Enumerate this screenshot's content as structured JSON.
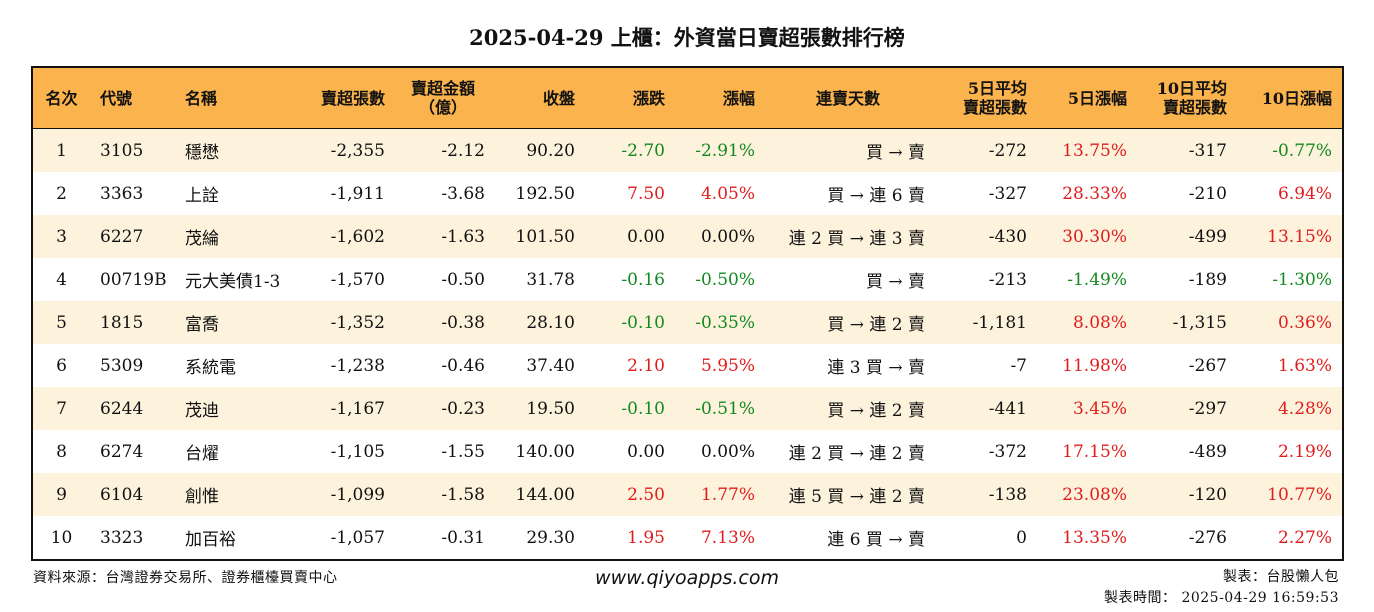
{
  "title": "2025-04-29 上櫃：外資當日賣超張數排行榜",
  "headers": {
    "rank": "名次",
    "code": "代號",
    "name": "名稱",
    "sell_lots": "賣超張數",
    "sell_amount_line1": "賣超金額",
    "sell_amount_line2": "（億）",
    "close": "收盤",
    "change": "漲跌",
    "change_pct": "漲幅",
    "streak": "連賣天數",
    "avg5_line1": "5日平均",
    "avg5_line2": "賣超張數",
    "pct5": "5日漲幅",
    "avg10_line1": "10日平均",
    "avg10_line2": "賣超張數",
    "pct10": "10日漲幅"
  },
  "colors": {
    "header_bg": "#fbb34d",
    "row_alt_bg": "#fdf2dc",
    "up": "#e01d1d",
    "down": "#128a20"
  },
  "rows": [
    {
      "rank": "1",
      "code": "3105",
      "name": "穩懋",
      "sell_lots": "-2,355",
      "amount": "-2.12",
      "close": "90.20",
      "change": "-2.70",
      "change_pct": "-2.91%",
      "streak": "買 → 賣",
      "avg5": "-272",
      "pct5": "13.75%",
      "avg10": "-317",
      "pct10": "-0.77%"
    },
    {
      "rank": "2",
      "code": "3363",
      "name": "上詮",
      "sell_lots": "-1,911",
      "amount": "-3.68",
      "close": "192.50",
      "change": "7.50",
      "change_pct": "4.05%",
      "streak": "買 → 連 6 賣",
      "avg5": "-327",
      "pct5": "28.33%",
      "avg10": "-210",
      "pct10": "6.94%"
    },
    {
      "rank": "3",
      "code": "6227",
      "name": "茂綸",
      "sell_lots": "-1,602",
      "amount": "-1.63",
      "close": "101.50",
      "change": "0.00",
      "change_pct": "0.00%",
      "streak": "連 2 買 → 連 3 賣",
      "avg5": "-430",
      "pct5": "30.30%",
      "avg10": "-499",
      "pct10": "13.15%"
    },
    {
      "rank": "4",
      "code": "00719B",
      "name": "元大美債1-3",
      "sell_lots": "-1,570",
      "amount": "-0.50",
      "close": "31.78",
      "change": "-0.16",
      "change_pct": "-0.50%",
      "streak": "買 → 賣",
      "avg5": "-213",
      "pct5": "-1.49%",
      "avg10": "-189",
      "pct10": "-1.30%"
    },
    {
      "rank": "5",
      "code": "1815",
      "name": "富喬",
      "sell_lots": "-1,352",
      "amount": "-0.38",
      "close": "28.10",
      "change": "-0.10",
      "change_pct": "-0.35%",
      "streak": "買 → 連 2 賣",
      "avg5": "-1,181",
      "pct5": "8.08%",
      "avg10": "-1,315",
      "pct10": "0.36%"
    },
    {
      "rank": "6",
      "code": "5309",
      "name": "系統電",
      "sell_lots": "-1,238",
      "amount": "-0.46",
      "close": "37.40",
      "change": "2.10",
      "change_pct": "5.95%",
      "streak": "連 3 買 → 賣",
      "avg5": "-7",
      "pct5": "11.98%",
      "avg10": "-267",
      "pct10": "1.63%"
    },
    {
      "rank": "7",
      "code": "6244",
      "name": "茂迪",
      "sell_lots": "-1,167",
      "amount": "-0.23",
      "close": "19.50",
      "change": "-0.10",
      "change_pct": "-0.51%",
      "streak": "買 → 連 2 賣",
      "avg5": "-441",
      "pct5": "3.45%",
      "avg10": "-297",
      "pct10": "4.28%"
    },
    {
      "rank": "8",
      "code": "6274",
      "name": "台燿",
      "sell_lots": "-1,105",
      "amount": "-1.55",
      "close": "140.00",
      "change": "0.00",
      "change_pct": "0.00%",
      "streak": "連 2 買 → 連 2 賣",
      "avg5": "-372",
      "pct5": "17.15%",
      "avg10": "-489",
      "pct10": "2.19%"
    },
    {
      "rank": "9",
      "code": "6104",
      "name": "創惟",
      "sell_lots": "-1,099",
      "amount": "-1.58",
      "close": "144.00",
      "change": "2.50",
      "change_pct": "1.77%",
      "streak": "連 5 買 → 連 2 賣",
      "avg5": "-138",
      "pct5": "23.08%",
      "avg10": "-120",
      "pct10": "10.77%"
    },
    {
      "rank": "10",
      "code": "3323",
      "name": "加百裕",
      "sell_lots": "-1,057",
      "amount": "-0.31",
      "close": "29.30",
      "change": "1.95",
      "change_pct": "7.13%",
      "streak": "連 6 買 → 賣",
      "avg5": "0",
      "pct5": "13.35%",
      "avg10": "-276",
      "pct10": "2.27%"
    }
  ],
  "footer": {
    "source": "資料來源：台灣證券交易所、證券櫃檯買賣中心",
    "website": "www.qiyoapps.com",
    "maker": "製表：台股懶人包",
    "made_time": "製表時間： 2025-04-29 16:59:53"
  }
}
